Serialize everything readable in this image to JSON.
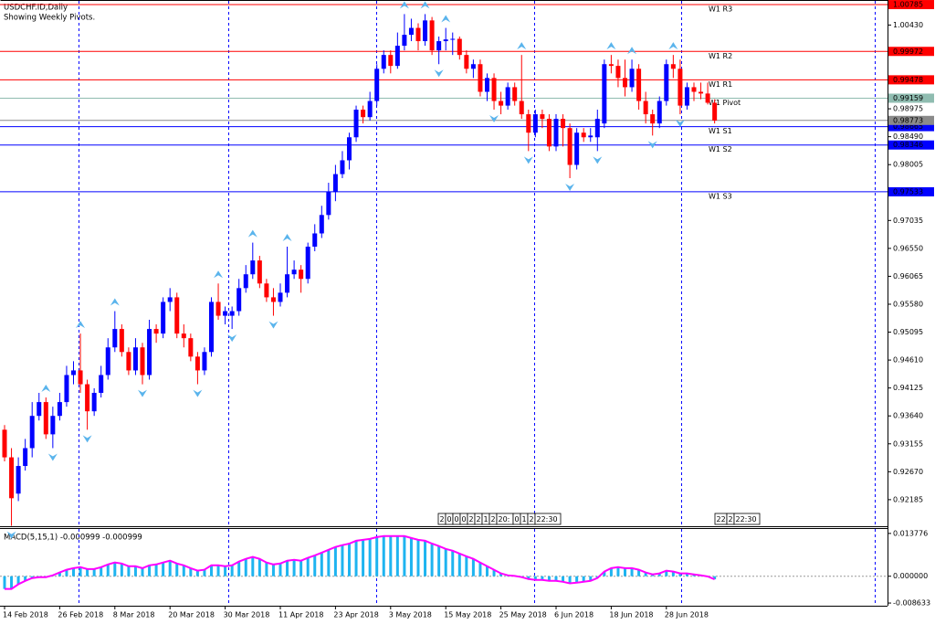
{
  "chart_data": [
    {
      "type": "candlestick",
      "title": "USDCHF.ID,Daily",
      "subtitle": "Showing Weekly Pivots.",
      "bull_color": "#0000ff",
      "bear_color": "#ff0000",
      "fractal_color": "#5ab4ec",
      "ylim": [
        0.91739,
        1.00833
      ],
      "yticks": [
        1.00785,
        {
          "value": 1.0043,
          "label": "1.00430"
        },
        0.98975,
        {
          "value": 0.9849,
          "label": "0.98490"
        },
        0.98005,
        0.97035,
        {
          "value": 0.9655,
          "label": "0.96550"
        },
        0.96065,
        {
          "value": 0.9558,
          "label": "0.95580"
        },
        0.95095,
        {
          "value": 0.9461,
          "label": "0.94610"
        },
        0.94125,
        {
          "value": 0.9364,
          "label": "0.93640"
        },
        0.93155,
        {
          "value": 0.9267,
          "label": "0.92670"
        },
        0.92185
      ],
      "categories": [
        "14 Feb 2018",
        null,
        null,
        null,
        null,
        null,
        null,
        null,
        "26 Feb 2018",
        null,
        null,
        null,
        null,
        null,
        null,
        null,
        "8 Mar 2018",
        null,
        null,
        null,
        null,
        null,
        null,
        null,
        "20 Mar 2018",
        null,
        null,
        null,
        null,
        null,
        null,
        null,
        "30 Mar 2018",
        null,
        null,
        null,
        null,
        null,
        null,
        null,
        "11 Apr 2018",
        null,
        null,
        null,
        null,
        null,
        null,
        null,
        "23 Apr 2018",
        null,
        null,
        null,
        null,
        null,
        null,
        null,
        "3 May 2018",
        null,
        null,
        null,
        null,
        null,
        null,
        null,
        "15 May 2018",
        null,
        null,
        null,
        null,
        null,
        null,
        null,
        "25 May 2018",
        null,
        null,
        null,
        null,
        null,
        null,
        null,
        "6 Jun 2018",
        null,
        null,
        null,
        null,
        null,
        null,
        null,
        "18 Jun 2018",
        null,
        null,
        null,
        null,
        null,
        null,
        null,
        "28 Jun 2018",
        null,
        null,
        null,
        null,
        null,
        null,
        null
      ],
      "open": [
        0.934,
        0.9292,
        0.9229,
        0.9277,
        0.9308,
        0.9364,
        0.9388,
        0.9332,
        0.9364,
        0.9388,
        0.9435,
        0.9443,
        0.9419,
        0.9372,
        0.9404,
        0.9435,
        0.9483,
        0.9515,
        0.9475,
        0.9443,
        0.9483,
        0.9435,
        0.9515,
        0.9507,
        0.9562,
        0.957,
        0.9507,
        0.9499,
        0.9467,
        0.9443,
        0.9475,
        0.9562,
        0.9538,
        0.9538,
        0.9546,
        0.9586,
        0.961,
        0.9634,
        0.9594,
        0.957,
        0.9562,
        0.9578,
        0.961,
        0.9618,
        0.9602,
        0.9658,
        0.9681,
        0.9713,
        0.9753,
        0.9784,
        0.9808,
        0.9848,
        0.9896,
        0.9883,
        0.9911,
        0.9967,
        0.9991,
        0.9972,
        1.0007,
        1.0026,
        1.0038,
        1.0015,
        1.0051,
        0.9999,
        1.0015,
        1.0018,
        1.0019,
        0.9991,
        0.9967,
        0.9975,
        0.9927,
        0.9951,
        0.9911,
        0.9903,
        0.9935,
        0.9911,
        0.9888,
        0.9856,
        0.9888,
        0.988,
        0.9832,
        0.988,
        0.9864,
        0.98,
        0.9856,
        0.9848,
        0.9848,
        0.9872,
        0.9975,
        0.9972,
        0.9951,
        0.9935,
        0.9967,
        0.9911,
        0.9888,
        0.9872,
        0.9911,
        0.9975,
        0.9967,
        0.9903,
        0.9935,
        0.9927,
        0.9924,
        0.9908
      ],
      "high": [
        0.9348,
        0.9308,
        0.9292,
        0.9324,
        0.9388,
        0.9404,
        0.9396,
        0.938,
        0.9404,
        0.9451,
        0.9459,
        0.9507,
        0.9427,
        0.9412,
        0.9451,
        0.9499,
        0.9546,
        0.9523,
        0.9483,
        0.9499,
        0.9491,
        0.9531,
        0.9523,
        0.957,
        0.9586,
        0.9578,
        0.9523,
        0.9507,
        0.9475,
        0.9483,
        0.957,
        0.9594,
        0.9554,
        0.9554,
        0.9602,
        0.9626,
        0.9665,
        0.9642,
        0.9602,
        0.9586,
        0.9594,
        0.9658,
        0.9634,
        0.9626,
        0.9665,
        0.9697,
        0.9729,
        0.9769,
        0.98,
        0.9824,
        0.9856,
        0.9903,
        0.9903,
        0.9927,
        0.9975,
        0.9999,
        0.9999,
        1.003,
        1.0062,
        1.0054,
        1.0046,
        1.0062,
        1.0057,
        1.0023,
        1.0038,
        1.003,
        1.0023,
        0.9999,
        0.9983,
        0.9983,
        0.9959,
        0.9959,
        0.9927,
        0.9943,
        0.9943,
        0.9991,
        0.9896,
        0.9896,
        0.9896,
        0.9888,
        0.9888,
        0.9888,
        0.9872,
        0.9864,
        0.9864,
        0.9864,
        0.9896,
        0.9983,
        0.9991,
        0.9983,
        0.9983,
        0.9983,
        0.9975,
        0.9927,
        0.9896,
        0.9919,
        0.9983,
        0.9991,
        0.9983,
        0.9943,
        0.9943,
        0.9943,
        0.9943,
        0.9914
      ],
      "low": [
        0.9285,
        0.9173,
        0.9216,
        0.9269,
        0.9292,
        0.9356,
        0.9324,
        0.9308,
        0.9356,
        0.938,
        0.9419,
        0.9404,
        0.934,
        0.9364,
        0.9396,
        0.9427,
        0.9475,
        0.9467,
        0.9435,
        0.9435,
        0.9419,
        0.9427,
        0.9491,
        0.9499,
        0.9546,
        0.9499,
        0.9483,
        0.9459,
        0.9419,
        0.9435,
        0.9467,
        0.9531,
        0.9523,
        0.9515,
        0.9538,
        0.9578,
        0.9602,
        0.9586,
        0.9562,
        0.9538,
        0.9554,
        0.957,
        0.9602,
        0.9578,
        0.9594,
        0.965,
        0.9673,
        0.9705,
        0.9737,
        0.9777,
        0.9792,
        0.984,
        0.9872,
        0.9877,
        0.9903,
        0.9959,
        0.9959,
        0.9967,
        0.9999,
        1.0015,
        0.9999,
        1.0007,
        0.9991,
        0.9975,
        0.9999,
        0.9991,
        0.9983,
        0.9959,
        0.9951,
        0.9919,
        0.9911,
        0.9896,
        0.9888,
        0.9896,
        0.9903,
        0.988,
        0.9824,
        0.9848,
        0.9864,
        0.9824,
        0.9824,
        0.9832,
        0.9777,
        0.9792,
        0.984,
        0.984,
        0.9824,
        0.9864,
        0.9959,
        0.9935,
        0.9919,
        0.9927,
        0.9896,
        0.9872,
        0.9851,
        0.9864,
        0.9903,
        0.9951,
        0.9888,
        0.9896,
        0.9911,
        0.9914,
        0.9905,
        0.9872
      ],
      "close": [
        0.9292,
        0.9221,
        0.9277,
        0.9308,
        0.9364,
        0.9388,
        0.9332,
        0.9364,
        0.9388,
        0.9435,
        0.9443,
        0.9419,
        0.9372,
        0.9404,
        0.9435,
        0.9483,
        0.9515,
        0.9475,
        0.9443,
        0.9483,
        0.9435,
        0.9515,
        0.9507,
        0.9562,
        0.957,
        0.9507,
        0.9499,
        0.9467,
        0.9443,
        0.9475,
        0.9562,
        0.9538,
        0.9546,
        0.9546,
        0.9586,
        0.961,
        0.9634,
        0.9594,
        0.957,
        0.9562,
        0.9578,
        0.961,
        0.9618,
        0.9602,
        0.9658,
        0.9681,
        0.9713,
        0.9753,
        0.9784,
        0.9808,
        0.9848,
        0.9896,
        0.9883,
        0.9911,
        0.9967,
        0.9991,
        0.9972,
        1.0007,
        1.0026,
        1.0038,
        1.0015,
        1.0051,
        0.9999,
        1.0015,
        1.0018,
        1.0019,
        0.9991,
        0.9967,
        0.9975,
        0.9927,
        0.9951,
        0.9911,
        0.9903,
        0.9935,
        0.9911,
        0.9888,
        0.9856,
        0.9888,
        0.988,
        0.9832,
        0.988,
        0.9864,
        0.98,
        0.9856,
        0.9848,
        0.9851,
        0.988,
        0.9975,
        0.9972,
        0.9951,
        0.9935,
        0.9967,
        0.9911,
        0.9888,
        0.9872,
        0.9911,
        0.9975,
        0.9967,
        0.9903,
        0.9935,
        0.9927,
        0.9924,
        0.9908,
        0.9877
      ],
      "fractals_up": [
        6,
        11,
        16,
        31,
        36,
        41,
        58,
        61,
        64,
        75,
        88,
        91,
        97
      ],
      "fractals_down": [
        1,
        7,
        12,
        20,
        28,
        33,
        39,
        63,
        71,
        76,
        82,
        86,
        94,
        98
      ],
      "pivots": [
        {
          "name": "W1 R3",
          "value": 1.00785,
          "color": "#ff0000"
        },
        {
          "name": "W1 R2",
          "value": 0.99972,
          "color": "#ff0000"
        },
        {
          "name": "W1 R1",
          "value": 0.99478,
          "color": "#ff0000"
        },
        {
          "name": "W1 Pivot",
          "value": 0.99159,
          "color": "#8fbcb0"
        },
        {
          "name": "W1 S1",
          "value": 0.98665,
          "color": "#0000ff"
        },
        {
          "name": "W1 S2",
          "value": 0.98346,
          "color": "#0000ff"
        },
        {
          "name": "W1 S3",
          "value": 0.97533,
          "color": "#0000ff"
        }
      ],
      "current_price": 0.98773,
      "time_markers": [
        [
          "2",
          "0",
          "0",
          "0",
          "2",
          "2",
          "1",
          "2",
          "20:",
          "0",
          "1",
          "2",
          "22:30"
        ],
        [
          "22",
          "2",
          "22:30"
        ]
      ]
    },
    {
      "type": "macd",
      "title": "MACD(5,15,1) -0.000999 -0.000999",
      "bar_color": "#1eb4f0",
      "line_color": "#ff00ff",
      "ylim": [
        -0.0095,
        0.0155
      ],
      "yticks": [
        0.013776,
        {
          "value": 0,
          "label": "0.000000"
        },
        -0.008633
      ],
      "values": [
        -0.0041,
        -0.0041,
        -0.0026,
        -0.0015,
        -0.0006,
        -0.0003,
        -0.0003,
        0.0003,
        0.0012,
        0.0021,
        0.0026,
        0.0029,
        0.0023,
        0.0023,
        0.0029,
        0.0038,
        0.0044,
        0.0041,
        0.0032,
        0.0032,
        0.0026,
        0.0035,
        0.0038,
        0.0044,
        0.005,
        0.0041,
        0.0035,
        0.0026,
        0.0018,
        0.0021,
        0.0035,
        0.0035,
        0.0032,
        0.0035,
        0.0047,
        0.0056,
        0.0062,
        0.0056,
        0.0044,
        0.0038,
        0.0041,
        0.005,
        0.0053,
        0.005,
        0.0059,
        0.0067,
        0.0076,
        0.0085,
        0.0094,
        0.01,
        0.0105,
        0.0114,
        0.0117,
        0.012,
        0.0126,
        0.0129,
        0.0129,
        0.0129,
        0.0129,
        0.0123,
        0.0117,
        0.0114,
        0.0105,
        0.0097,
        0.0088,
        0.0082,
        0.0073,
        0.0064,
        0.0056,
        0.0044,
        0.0032,
        0.0021,
        0.0009,
        0.0003,
        0.0001,
        -0.0003,
        -0.0009,
        -0.0012,
        -0.0012,
        -0.0015,
        -0.0015,
        -0.0018,
        -0.0023,
        -0.0021,
        -0.0018,
        -0.0015,
        -0.0006,
        0.0015,
        0.0026,
        0.0029,
        0.0026,
        0.0026,
        0.0021,
        0.0012,
        0.0006,
        0.0009,
        0.0018,
        0.0015,
        0.0009,
        0.0009,
        0.0006,
        0.0003,
        -0.0001,
        -0.001
      ]
    }
  ]
}
